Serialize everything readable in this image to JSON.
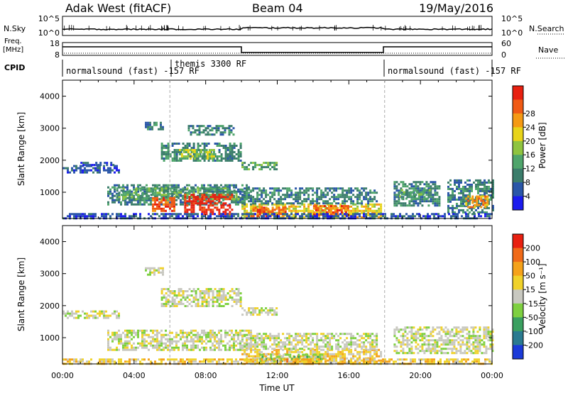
{
  "header": {
    "title": "Adak West (fitACF)",
    "beam": "Beam 04",
    "date": "19/May/2016"
  },
  "top_panels": {
    "nsky": {
      "left_label": "N.Sky",
      "left_ticks": [
        "10^5",
        "10^0"
      ],
      "right_label": "N.Search",
      "right_ticks": [
        "10^5",
        "10^0"
      ]
    },
    "freq": {
      "left_label_line1": "Freq.",
      "left_label_line2": "[MHz]",
      "left_ticks": [
        "18",
        "8"
      ],
      "right_label": "Nave",
      "right_ticks": [
        "60",
        "0"
      ]
    },
    "cpid": {
      "label": "CPID",
      "segments": [
        {
          "start": 0,
          "end": 6,
          "text": "normalsound (fast) -157 RF"
        },
        {
          "start": 6,
          "end": 18,
          "text": "themis 3300 RF"
        },
        {
          "start": 18,
          "end": 24,
          "text": "normalsound (fast) -157 RF"
        }
      ]
    }
  },
  "axes": {
    "x_ticks": [
      "00:00",
      "04:00",
      "08:00",
      "12:00",
      "16:00",
      "20:00",
      "00:00"
    ],
    "x_label": "Time UT",
    "y_ticks": [
      "1000",
      "2000",
      "3000",
      "4000"
    ],
    "y_label": "Slant Range [km]"
  },
  "colorbars": {
    "power": {
      "label": "Power [dB]",
      "ticks": [
        "4",
        "8",
        "12",
        "16",
        "20",
        "24",
        "28"
      ],
      "colors": [
        "#1b1bee",
        "#2a56a8",
        "#3b7d6b",
        "#4fa56b",
        "#8fc43f",
        "#e8d41a",
        "#f59a14",
        "#f05a14",
        "#e82010"
      ]
    },
    "velocity": {
      "label": "Velocity [m s⁻¹]",
      "ticks": [
        "200",
        "100",
        "50",
        "15",
        "-15",
        "-50",
        "-100",
        "-200"
      ],
      "colors": [
        "#1b3ad8",
        "#2a7a90",
        "#3aa060",
        "#7ed040",
        "#c8c8c0",
        "#f0d22a",
        "#f5a21a",
        "#f06a18",
        "#e82010"
      ]
    }
  },
  "chart_data": [
    {
      "type": "heatmap",
      "panel": "power",
      "x_unit": "hours UT",
      "y_unit": "km",
      "xlim": [
        0,
        24
      ],
      "ylim": [
        180,
        4500
      ],
      "y_ticks": [
        1000,
        2000,
        3000,
        4000
      ],
      "regions": [
        {
          "t0": 0.0,
          "t1": 3.1,
          "r0": 1650,
          "r1": 1850,
          "level": 1
        },
        {
          "t0": 1.0,
          "t1": 3.0,
          "r0": 1850,
          "r1": 1950,
          "level": 1
        },
        {
          "t0": 2.5,
          "t1": 10.5,
          "r0": 650,
          "r1": 1250,
          "level": 2
        },
        {
          "t0": 3.0,
          "t1": 9.8,
          "r0": 800,
          "r1": 1150,
          "level": 3
        },
        {
          "t0": 5.0,
          "t1": 6.2,
          "r0": 400,
          "r1": 850,
          "level": 7
        },
        {
          "t0": 6.8,
          "t1": 9.5,
          "r0": 350,
          "r1": 950,
          "level": 8
        },
        {
          "t0": 5.5,
          "t1": 10.0,
          "r0": 2000,
          "r1": 2550,
          "level": 2
        },
        {
          "t0": 6.5,
          "t1": 8.5,
          "r0": 2050,
          "r1": 2350,
          "level": 4
        },
        {
          "t0": 10.0,
          "t1": 12.0,
          "r0": 1700,
          "r1": 1950,
          "level": 3
        },
        {
          "t0": 4.6,
          "t1": 5.6,
          "r0": 2950,
          "r1": 3200,
          "level": 2
        },
        {
          "t0": 7.0,
          "t1": 9.5,
          "r0": 2800,
          "r1": 3100,
          "level": 2
        },
        {
          "t0": 10.0,
          "t1": 17.8,
          "r0": 200,
          "r1": 650,
          "level": 5
        },
        {
          "t0": 10.5,
          "t1": 12.5,
          "r0": 250,
          "r1": 550,
          "level": 7
        },
        {
          "t0": 14.0,
          "t1": 16.0,
          "r0": 300,
          "r1": 600,
          "level": 7
        },
        {
          "t0": 10.0,
          "t1": 17.5,
          "r0": 650,
          "r1": 1150,
          "level": 2
        },
        {
          "t0": 18.5,
          "t1": 21.0,
          "r0": 600,
          "r1": 1350,
          "level": 2
        },
        {
          "t0": 18.8,
          "t1": 20.5,
          "r0": 800,
          "r1": 1100,
          "level": 3
        },
        {
          "t0": 21.5,
          "t1": 24.0,
          "r0": 400,
          "r1": 1400,
          "level": 2
        },
        {
          "t0": 22.5,
          "t1": 23.8,
          "r0": 550,
          "r1": 900,
          "level": 6
        },
        {
          "t0": 0.0,
          "t1": 24.0,
          "r0": 180,
          "r1": 350,
          "level": 1
        }
      ]
    },
    {
      "type": "heatmap",
      "panel": "velocity",
      "x_unit": "hours UT",
      "y_unit": "km",
      "xlim": [
        0,
        24
      ],
      "ylim": [
        180,
        4500
      ],
      "y_ticks": [
        1000,
        2000,
        3000,
        4000
      ],
      "regions": [
        {
          "t0": 0.0,
          "t1": 3.1,
          "r0": 1650,
          "r1": 1850,
          "level": 4
        },
        {
          "t0": 2.5,
          "t1": 10.5,
          "r0": 650,
          "r1": 1250,
          "level": 4
        },
        {
          "t0": 5.5,
          "t1": 10.0,
          "r0": 2000,
          "r1": 2550,
          "level": 4
        },
        {
          "t0": 10.0,
          "t1": 12.0,
          "r0": 1700,
          "r1": 1950,
          "level": 4
        },
        {
          "t0": 4.6,
          "t1": 5.6,
          "r0": 2950,
          "r1": 3200,
          "level": 4
        },
        {
          "t0": 10.0,
          "t1": 17.8,
          "r0": 200,
          "r1": 650,
          "level": 5
        },
        {
          "t0": 11.0,
          "t1": 14.5,
          "r0": 250,
          "r1": 500,
          "level": 3
        },
        {
          "t0": 12.5,
          "t1": 14.0,
          "r0": 200,
          "r1": 350,
          "level": 6
        },
        {
          "t0": 10.0,
          "t1": 17.5,
          "r0": 650,
          "r1": 1150,
          "level": 4
        },
        {
          "t0": 18.5,
          "t1": 24.0,
          "r0": 500,
          "r1": 1350,
          "level": 4
        },
        {
          "t0": 0.0,
          "t1": 24.0,
          "r0": 180,
          "r1": 350,
          "level": 5
        }
      ]
    }
  ]
}
